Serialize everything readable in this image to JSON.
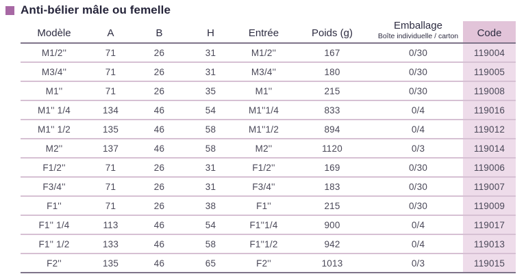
{
  "title": {
    "text": "Anti-bélier mâle ou femelle"
  },
  "colors": {
    "accent_purple": "#a768a4",
    "title_text": "#25243a",
    "header_text": "#2d2c41",
    "body_text": "#4a4858",
    "strong_line": "#7e7389",
    "row_line": "#d6c0d3",
    "code_header_bg": "#e2c4d9",
    "code_cell_bg": "#eedcea"
  },
  "table": {
    "columns": [
      {
        "label": "Modèle"
      },
      {
        "label": "A"
      },
      {
        "label": "B"
      },
      {
        "label": "H"
      },
      {
        "label": "Entrée"
      },
      {
        "label": "Poids (g)"
      },
      {
        "label": "Emballage",
        "sublabel": "Boîte individuelle / carton"
      },
      {
        "label": "Code"
      }
    ],
    "rows": [
      [
        "M1/2''",
        "71",
        "26",
        "31",
        "M1/2''",
        "167",
        "0/30",
        "119004"
      ],
      [
        "M3/4''",
        "71",
        "26",
        "31",
        "M3/4''",
        "180",
        "0/30",
        "119005"
      ],
      [
        "M1''",
        "71",
        "26",
        "35",
        "M1''",
        "215",
        "0/30",
        "119008"
      ],
      [
        "M1'' 1/4",
        "134",
        "46",
        "54",
        "M1''1/4",
        "833",
        "0/4",
        "119016"
      ],
      [
        "M1'' 1/2",
        "135",
        "46",
        "58",
        "M1''1/2",
        "894",
        "0/4",
        "119012"
      ],
      [
        "M2''",
        "137",
        "46",
        "58",
        "M2''",
        "1120",
        "0/3",
        "119014"
      ],
      [
        "F1/2''",
        "71",
        "26",
        "31",
        "F1/2''",
        "169",
        "0/30",
        "119006"
      ],
      [
        "F3/4''",
        "71",
        "26",
        "31",
        "F3/4''",
        "183",
        "0/30",
        "119007"
      ],
      [
        "F1''",
        "71",
        "26",
        "38",
        "F1''",
        "215",
        "0/30",
        "119009"
      ],
      [
        "F1'' 1/4",
        "113",
        "46",
        "54",
        "F1''1/4",
        "900",
        "0/4",
        "119017"
      ],
      [
        "F1'' 1/2",
        "133",
        "46",
        "58",
        "F1''1/2",
        "942",
        "0/4",
        "119013"
      ],
      [
        "F2''",
        "135",
        "46",
        "65",
        "F2''",
        "1013",
        "0/3",
        "119015"
      ]
    ]
  }
}
